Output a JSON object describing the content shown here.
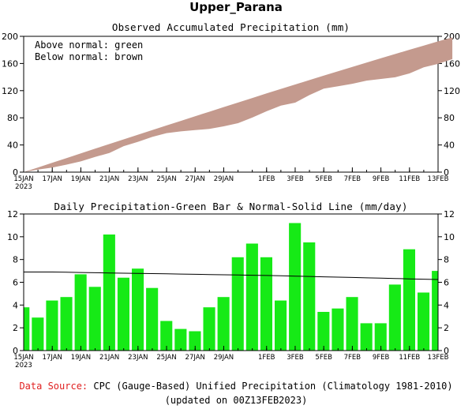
{
  "header": {
    "title": "Upper_Parana"
  },
  "footer": {
    "source_label": "Data Source:",
    "source_text": "CPC (Gauge-Based) Unified Precipitation (Climatology 1981-2010)",
    "updated_text": "(updated on 00Z13FEB2023)"
  },
  "colors": {
    "band": "#c49a8e",
    "bar": "#16ea16",
    "line": "#000000",
    "source_label": "#e02020"
  },
  "chart_data": [
    {
      "type": "area",
      "title": "Observed Accumulated Precipitation (mm)",
      "legend": [
        "Above normal: green",
        "Below normal: brown"
      ],
      "legend_placement": "top-left",
      "grid": false,
      "x_day_range": [
        0,
        28
      ],
      "ylim": [
        0,
        200
      ],
      "y_ticks": [
        0,
        40,
        80,
        120,
        160,
        200
      ],
      "x_tick_labels": [
        {
          "day": 0,
          "label": "15JAN",
          "sub": "2023"
        },
        {
          "day": 2,
          "label": "17JAN"
        },
        {
          "day": 4,
          "label": "19JAN"
        },
        {
          "day": 6,
          "label": "21JAN"
        },
        {
          "day": 8,
          "label": "23JAN"
        },
        {
          "day": 10,
          "label": "25JAN"
        },
        {
          "day": 12,
          "label": "27JAN"
        },
        {
          "day": 14,
          "label": "29JAN"
        },
        {
          "day": 17,
          "label": "1FEB"
        },
        {
          "day": 19,
          "label": "3FEB"
        },
        {
          "day": 21,
          "label": "5FEB"
        },
        {
          "day": 23,
          "label": "7FEB"
        },
        {
          "day": 25,
          "label": "9FEB"
        },
        {
          "day": 27,
          "label": "11FEB"
        },
        {
          "day": 29,
          "label": "13FEB"
        }
      ],
      "series": [
        {
          "name": "Normal",
          "values": [
            6.9,
            13.8,
            20.7,
            27.6,
            34.5,
            41.4,
            48.2,
            55.1,
            61.9,
            68.7,
            75.5,
            82.3,
            89.0,
            95.8,
            102.5,
            109.2,
            115.9,
            122.5,
            129.1,
            135.6,
            142.1,
            148.6,
            155.0,
            161.4,
            167.7,
            174.0,
            180.2,
            186.4,
            192.5,
            198.6
          ]
        },
        {
          "name": "Observed",
          "values": [
            3.8,
            6.7,
            11.1,
            15.8,
            22.5,
            28.1,
            38.3,
            44.7,
            51.9,
            57.4,
            60.0,
            61.9,
            63.6,
            67.4,
            72.1,
            80.3,
            89.7,
            97.9,
            102.3,
            113.5,
            123.0,
            126.4,
            130.1,
            134.8,
            137.2,
            139.6,
            145.4,
            154.3,
            159.4,
            166.4
          ]
        }
      ]
    },
    {
      "type": "bar",
      "title": "Daily Precipitation-Green Bar & Normal-Solid Line (mm/day)",
      "grid": false,
      "x_day_range": [
        0,
        28
      ],
      "ylim": [
        0,
        12
      ],
      "y_ticks": [
        0,
        2,
        4,
        6,
        8,
        10,
        12
      ],
      "x_tick_labels": [
        {
          "day": 0,
          "label": "15JAN",
          "sub": "2023"
        },
        {
          "day": 2,
          "label": "17JAN"
        },
        {
          "day": 4,
          "label": "19JAN"
        },
        {
          "day": 6,
          "label": "21JAN"
        },
        {
          "day": 8,
          "label": "23JAN"
        },
        {
          "day": 10,
          "label": "25JAN"
        },
        {
          "day": 12,
          "label": "27JAN"
        },
        {
          "day": 14,
          "label": "29JAN"
        },
        {
          "day": 17,
          "label": "1FEB"
        },
        {
          "day": 19,
          "label": "3FEB"
        },
        {
          "day": 21,
          "label": "5FEB"
        },
        {
          "day": 23,
          "label": "7FEB"
        },
        {
          "day": 25,
          "label": "9FEB"
        },
        {
          "day": 27,
          "label": "11FEB"
        },
        {
          "day": 29,
          "label": "13FEB"
        }
      ],
      "series": [
        {
          "name": "Daily Precipitation",
          "values": [
            3.8,
            2.9,
            4.4,
            4.7,
            6.7,
            5.6,
            10.2,
            6.4,
            7.2,
            5.5,
            2.6,
            1.9,
            1.7,
            3.8,
            4.7,
            8.2,
            9.4,
            8.2,
            4.4,
            11.2,
            9.5,
            3.4,
            3.7,
            4.7,
            2.4,
            2.4,
            5.8,
            8.9,
            5.1,
            7.0
          ]
        },
        {
          "name": "Normal",
          "values": [
            6.9,
            6.9,
            6.9,
            6.88,
            6.86,
            6.84,
            6.82,
            6.8,
            6.78,
            6.76,
            6.74,
            6.72,
            6.7,
            6.68,
            6.66,
            6.64,
            6.62,
            6.6,
            6.57,
            6.54,
            6.51,
            6.48,
            6.45,
            6.42,
            6.39,
            6.36,
            6.33,
            6.3,
            6.27,
            6.24
          ]
        }
      ]
    }
  ]
}
